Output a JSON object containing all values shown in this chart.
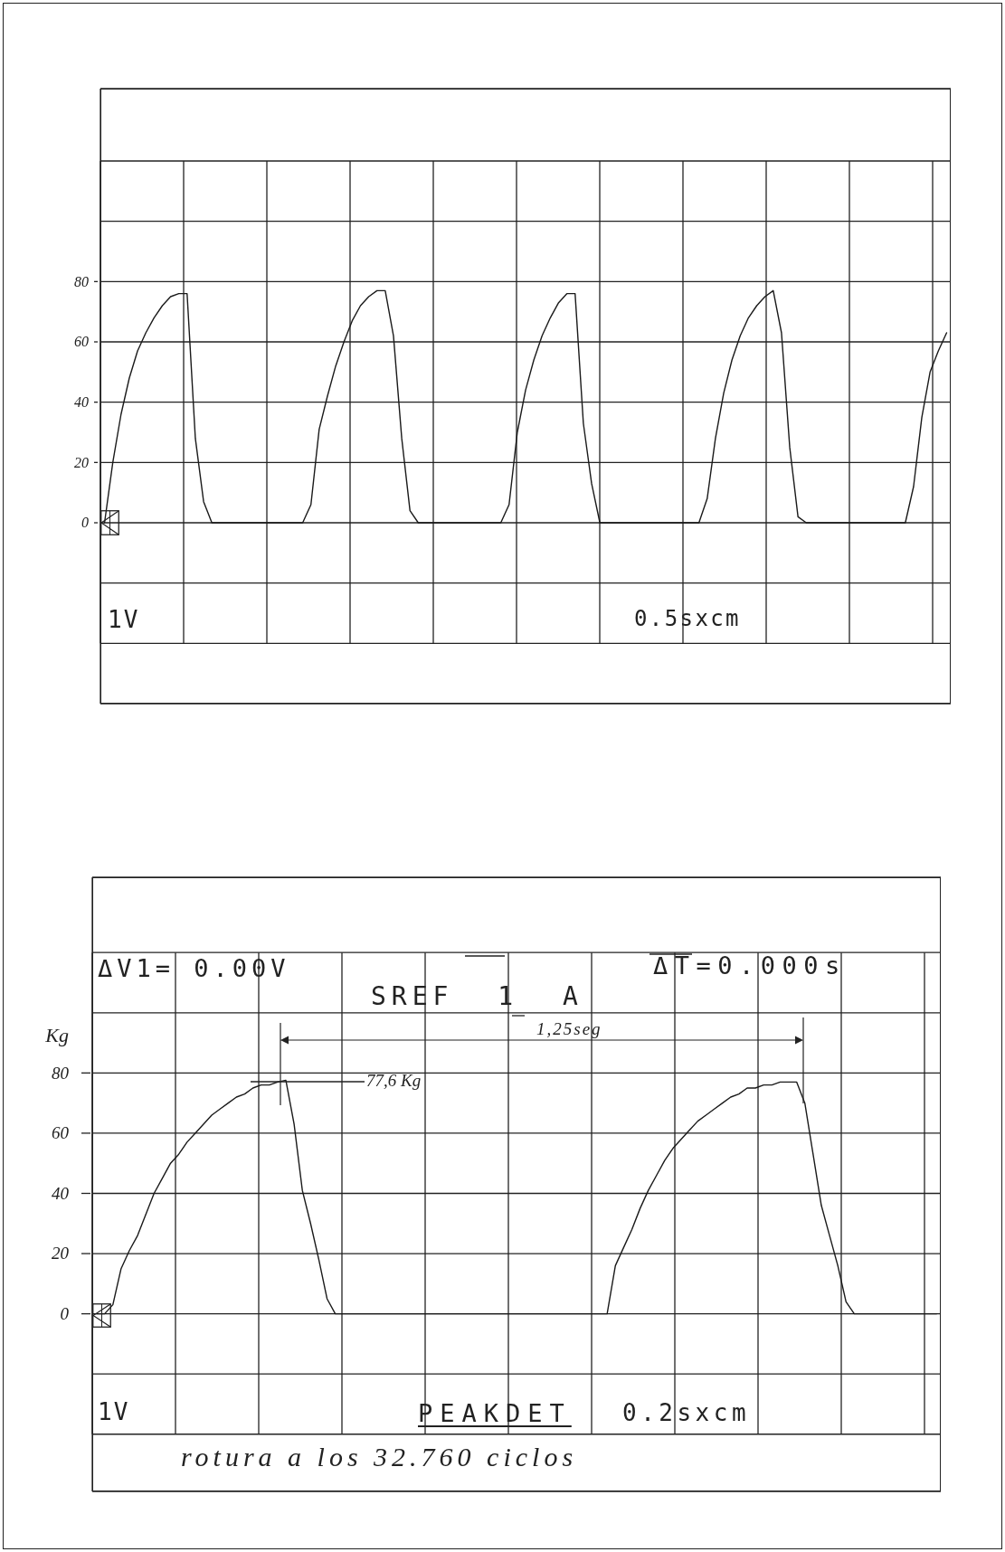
{
  "chart_data": [
    {
      "type": "line",
      "categories": [
        null,
        null,
        null,
        null,
        null,
        null,
        null,
        null,
        null,
        null,
        null,
        null,
        null,
        null,
        null,
        null,
        null,
        null,
        null,
        null,
        null,
        null,
        null,
        null,
        null,
        null,
        null,
        null,
        null,
        null,
        null,
        null,
        null,
        null,
        null,
        null,
        null,
        null,
        null,
        null,
        null,
        null,
        null,
        null,
        null,
        null,
        null,
        null,
        null,
        null,
        null,
        null,
        null,
        null,
        null,
        null,
        null,
        null,
        null,
        null,
        null,
        null,
        null,
        null,
        null,
        null,
        null,
        null,
        null,
        null,
        null,
        null,
        null,
        null,
        null,
        null,
        null,
        null,
        null,
        null,
        null,
        null,
        null,
        null,
        null,
        null,
        null,
        null,
        null,
        null,
        null,
        null,
        null,
        null,
        null,
        null,
        null,
        null,
        null,
        null,
        null,
        null,
        null
      ],
      "series": [
        {
          "color": "#1a1a1a",
          "values": [
            0,
            20,
            36,
            48,
            57,
            63,
            68,
            72,
            75,
            76,
            76,
            28,
            7,
            0,
            0,
            0,
            0,
            0,
            0,
            0,
            0,
            0,
            0,
            0,
            0,
            6,
            31,
            42,
            52,
            60,
            67,
            72,
            75,
            77,
            77,
            62,
            28,
            4,
            0,
            0,
            0,
            0,
            0,
            0,
            0,
            0,
            0,
            0,
            0,
            6,
            30,
            44,
            54,
            62,
            68,
            73,
            76,
            76,
            33,
            13,
            0,
            0,
            0,
            0,
            0,
            0,
            0,
            0,
            0,
            0,
            0,
            0,
            0,
            8,
            28,
            43,
            54,
            62,
            68,
            72,
            75,
            77,
            63,
            25,
            2,
            0,
            0,
            0,
            0,
            0,
            0,
            0,
            0,
            0,
            0,
            0,
            0,
            0,
            12,
            35,
            50,
            57,
            63
          ]
        }
      ],
      "ylim": [
        -60,
        144
      ],
      "yticks": [
        {
          "value": -40,
          "label": null
        },
        {
          "value": -20,
          "label": null
        },
        0,
        20,
        40,
        60,
        80,
        {
          "value": 100,
          "label": null
        },
        {
          "value": 120,
          "label": null
        }
      ],
      "grid": true,
      "tick_labels": "y",
      "annotations": [
        "1V",
        "0.5sxcm"
      ]
    },
    {
      "type": "line",
      "ylabel": "Kg",
      "categories": [
        null,
        null,
        null,
        null,
        null,
        null,
        null,
        null,
        null,
        null,
        null,
        null,
        null,
        null,
        null,
        null,
        null,
        null,
        null,
        null,
        null,
        null,
        null,
        null,
        null,
        null,
        null,
        null,
        null,
        null,
        null,
        null,
        null,
        null,
        null,
        null,
        null,
        null,
        null,
        null,
        null,
        null,
        null,
        null,
        null,
        null,
        null,
        null,
        null,
        null,
        null,
        null,
        null,
        null,
        null,
        null,
        null,
        null,
        null,
        null,
        null,
        null,
        null,
        null,
        null,
        null,
        null,
        null,
        null,
        null,
        null,
        null,
        null,
        null,
        null,
        null,
        null,
        null,
        null,
        null,
        null,
        null,
        null,
        null,
        null,
        null,
        null,
        null,
        null,
        null,
        null,
        null,
        null,
        null,
        null,
        null,
        null,
        null,
        null,
        null,
        null,
        null,
        null
      ],
      "series": [
        {
          "color": "#1a1a1a",
          "values": [
            0,
            0,
            3,
            15,
            21,
            26,
            33,
            40,
            45,
            50,
            53,
            57,
            60,
            63,
            66,
            68,
            70,
            72,
            73,
            75,
            76,
            76,
            77,
            77.6,
            63,
            41,
            30,
            18,
            5,
            0,
            0,
            0,
            0,
            0,
            0,
            0,
            0,
            0,
            0,
            0,
            0,
            0,
            0,
            0,
            0,
            0,
            0,
            0,
            0,
            0,
            0,
            0,
            0,
            0,
            0,
            0,
            0,
            0,
            0,
            0,
            0,
            0,
            0,
            16,
            22,
            28,
            35,
            41,
            46,
            51,
            55,
            58,
            61,
            64,
            66,
            68,
            70,
            72,
            73,
            75,
            75,
            76,
            76,
            77,
            77,
            77,
            70,
            53,
            36,
            26,
            16,
            4,
            0,
            0,
            0,
            0,
            0,
            0,
            0,
            0,
            0,
            0,
            0
          ]
        }
      ],
      "ylim": [
        -59,
        145
      ],
      "yticks": [
        {
          "value": -40,
          "label": null
        },
        {
          "value": -20,
          "label": null
        },
        0,
        20,
        40,
        60,
        80,
        {
          "value": 100,
          "label": null
        },
        {
          "value": 120,
          "label": null
        }
      ],
      "grid": true,
      "tick_labels": "y",
      "annotations": [
        "ΔV1= 0.00V",
        "ΔT=0.000s",
        "SREF 1 A",
        "1,25seg",
        "77,6 Kg",
        "1V",
        "PEAKDET",
        "0.2sxcm",
        "rotura a los 32.760 ciclos"
      ]
    }
  ]
}
